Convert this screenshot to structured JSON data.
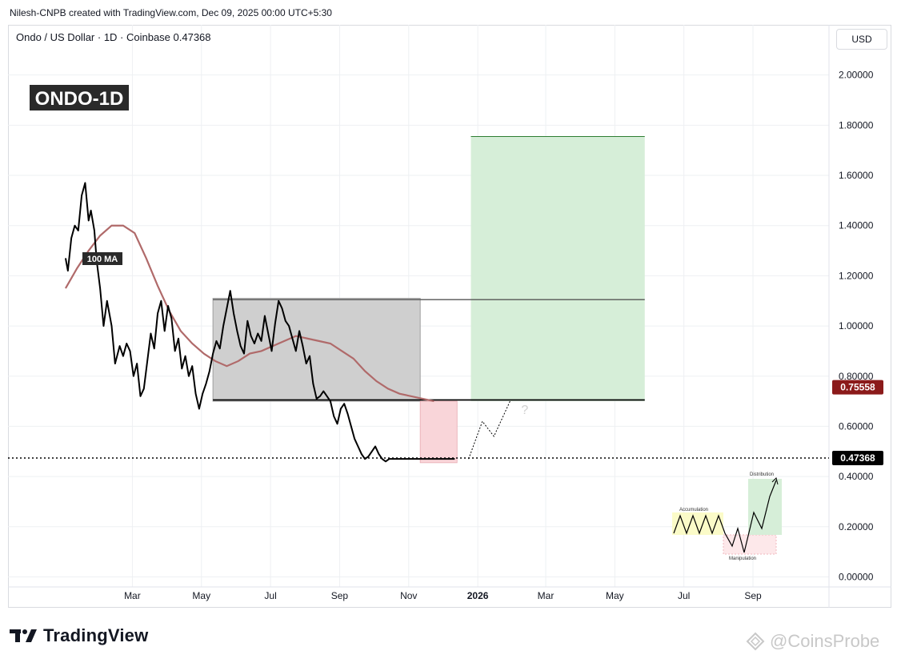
{
  "header": {
    "created_by": "Nilesh-CNPB created with TradingView.com, Dec 09, 2025 00:00 UTC+5:30"
  },
  "chart_data": {
    "type": "line",
    "title": "Ondo / US Dollar · 1D · Coinbase 0.47368",
    "label": "ONDO-1D",
    "currency_button": "USD",
    "y_ticks": [
      "2.00000",
      "1.80000",
      "1.60000",
      "1.40000",
      "1.20000",
      "1.00000",
      "0.80000",
      "0.60000",
      "0.40000",
      "0.20000",
      "0.00000"
    ],
    "y_tick_values": [
      2.0,
      1.8,
      1.6,
      1.4,
      1.2,
      1.0,
      0.8,
      0.6,
      0.4,
      0.2,
      0.0
    ],
    "ylim": [
      -0.04,
      2.2
    ],
    "x_ticks": [
      "Mar",
      "May",
      "Jul",
      "Sep",
      "Nov",
      "2026",
      "Mar",
      "May",
      "Jul",
      "Sep"
    ],
    "x_tick_days": [
      58,
      118,
      178,
      238,
      298,
      358,
      417,
      477,
      537,
      597
    ],
    "xlim": [
      -50,
      663
    ],
    "price_series_name": "Ondo / US Dollar",
    "price": {
      "days": [
        0,
        2,
        5,
        8,
        11,
        14,
        17,
        20,
        22,
        25,
        27,
        30,
        33,
        36,
        40,
        43,
        47,
        50,
        53,
        56,
        59,
        62,
        65,
        68,
        71,
        74,
        77,
        80,
        83,
        86,
        89,
        92,
        95,
        98,
        101,
        104,
        107,
        110,
        113,
        116,
        119,
        122,
        125,
        128,
        131,
        134,
        137,
        140,
        143,
        146,
        149,
        152,
        155,
        158,
        161,
        164,
        167,
        170,
        173,
        176,
        179,
        182,
        185,
        188,
        191,
        194,
        197,
        200,
        203,
        206,
        209,
        212,
        215,
        218,
        221,
        224,
        227,
        230,
        233,
        236,
        239,
        242,
        245,
        248,
        251,
        254,
        257,
        260,
        263,
        266,
        269,
        272,
        275,
        278,
        281,
        284,
        287,
        290,
        293,
        296,
        299,
        302,
        305,
        308,
        311,
        314,
        317,
        320,
        323,
        326,
        329,
        332,
        335,
        338
      ],
      "values": [
        1.27,
        1.22,
        1.35,
        1.4,
        1.38,
        1.52,
        1.57,
        1.42,
        1.46,
        1.38,
        1.26,
        1.15,
        1.0,
        1.1,
        1.0,
        0.85,
        0.92,
        0.88,
        0.93,
        0.9,
        0.8,
        0.85,
        0.72,
        0.75,
        0.86,
        0.97,
        0.91,
        1.05,
        1.1,
        0.98,
        1.08,
        1.03,
        0.9,
        0.95,
        0.83,
        0.88,
        0.8,
        0.84,
        0.73,
        0.67,
        0.73,
        0.77,
        0.82,
        0.89,
        0.94,
        0.91,
        1.0,
        1.07,
        1.14,
        1.05,
        0.98,
        0.92,
        0.89,
        1.02,
        0.96,
        0.93,
        0.97,
        0.94,
        1.04,
        0.97,
        0.9,
        1.01,
        1.1,
        1.07,
        1.02,
        1.0,
        0.95,
        0.9,
        0.98,
        0.92,
        0.85,
        0.88,
        0.77,
        0.71,
        0.72,
        0.74,
        0.72,
        0.7,
        0.64,
        0.61,
        0.67,
        0.69,
        0.65,
        0.6,
        0.55,
        0.52,
        0.49,
        0.47,
        0.48,
        0.5,
        0.52,
        0.49,
        0.47,
        0.46,
        0.47,
        0.47,
        0.47,
        0.47,
        0.47,
        0.47,
        0.47,
        0.47,
        0.47,
        0.47,
        0.47,
        0.47,
        0.47,
        0.47,
        0.47,
        0.47,
        0.47,
        0.47,
        0.47,
        0.47
      ]
    },
    "ma_label": "100 MA",
    "ma": {
      "days": [
        0,
        10,
        20,
        30,
        40,
        50,
        60,
        70,
        80,
        90,
        100,
        110,
        120,
        130,
        140,
        150,
        160,
        170,
        180,
        190,
        200,
        210,
        220,
        230,
        240,
        250,
        260,
        270,
        280,
        290,
        300,
        310,
        320
      ],
      "values": [
        1.15,
        1.23,
        1.3,
        1.36,
        1.4,
        1.4,
        1.37,
        1.27,
        1.16,
        1.06,
        0.98,
        0.93,
        0.89,
        0.86,
        0.84,
        0.86,
        0.89,
        0.9,
        0.92,
        0.94,
        0.96,
        0.95,
        0.94,
        0.93,
        0.9,
        0.87,
        0.82,
        0.78,
        0.75,
        0.73,
        0.72,
        0.71,
        0.7
      ]
    },
    "range_box": {
      "day_start": 128,
      "day_end": 308,
      "low": 0.7,
      "high": 1.11
    },
    "resistance_line": {
      "value": 1.105
    },
    "support_line": {
      "value": 0.705
    },
    "red_zone": {
      "day_start": 308,
      "day_end": 340,
      "low": 0.455,
      "high": 0.7
    },
    "green_zone": {
      "day_start": 352,
      "day_end": 503,
      "low": 0.7,
      "high": 1.755
    },
    "current_price_line": {
      "value": 0.47368
    },
    "price_tags": [
      {
        "text": "0.75558",
        "value": 0.75558,
        "color": "#8b1a1a"
      },
      {
        "text": "0.47368",
        "value": 0.47368,
        "color": "#000000"
      }
    ],
    "projection_path": {
      "days": [
        350,
        362,
        372,
        386
      ],
      "values": [
        0.47,
        0.62,
        0.56,
        0.7
      ]
    },
    "question_mark": "?",
    "wyckoff_inset": {
      "accumulation_label": "Accumulation",
      "manipulation_label": "Manipulation",
      "distribution_label": "Distribution"
    },
    "grid": true
  },
  "footer": {
    "brand": "TradingView",
    "watermark": "@CoinsProbe",
    "icons": [
      "tradingview-logo-icon",
      "coinsprobe-icon"
    ]
  }
}
